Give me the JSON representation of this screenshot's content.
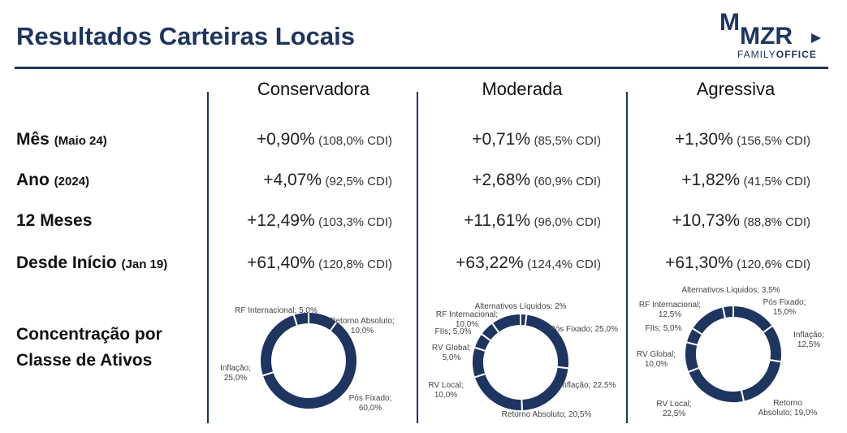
{
  "header": {
    "title": "Resultados Carteiras Locais",
    "logo": {
      "mark": "M",
      "name": "MZR",
      "family": "FAMILY",
      "office": "OFFICE"
    }
  },
  "table": {
    "columns": [
      "Conservadora",
      "Moderada",
      "Agressiva"
    ],
    "rows": [
      {
        "label": "Mês",
        "sub": "(Maio 24)",
        "cells": [
          [
            "+0,90%",
            "(108,0% CDI)"
          ],
          [
            "+0,71%",
            "(85,5% CDI)"
          ],
          [
            "+1,30%",
            "(156,5% CDI)"
          ]
        ]
      },
      {
        "label": "Ano",
        "sub": "(2024)",
        "cells": [
          [
            "+4,07%",
            "(92,5% CDI)"
          ],
          [
            "+2,68%",
            "(60,9% CDI)"
          ],
          [
            "+1,82%",
            "(41,5% CDI)"
          ]
        ]
      },
      {
        "label": "12 Meses",
        "sub": null,
        "cells": [
          [
            "+12,49%",
            "(103,3% CDI)"
          ],
          [
            "+11,61%",
            "(96,0% CDI)"
          ],
          [
            "+10,73%",
            "(88,8% CDI)"
          ]
        ]
      },
      {
        "label": "Desde Início",
        "sub": "(Jan 19)",
        "cells": [
          [
            "+61,40%",
            "(120,8% CDI)"
          ],
          [
            "+63,22%",
            "(124,4% CDI)"
          ],
          [
            "+61,30%",
            "(120,6% CDI)"
          ]
        ]
      }
    ],
    "concentration_label": "Concentração por\nClasse de Ativos"
  },
  "charts": [
    {
      "type": "donut",
      "color": "#1e3560",
      "slices": [
        {
          "label": "Retorno Absoluto;\n10,0%",
          "value": 10
        },
        {
          "label": "Pós Fixado;\n60,0%",
          "value": 60
        },
        {
          "label": "Inflação;\n25,0%",
          "value": 25
        },
        {
          "label": "RF Internacional; 5,0%",
          "value": 5
        }
      ]
    },
    {
      "type": "donut",
      "color": "#1e3560",
      "slices": [
        {
          "label": "Alternativos Líquidos; 2%",
          "value": 2
        },
        {
          "label": "Pós Fixado; 25,0%",
          "value": 25
        },
        {
          "label": "Inflação; 22,5%",
          "value": 22.5
        },
        {
          "label": "Retorno Absoluto; 20,5%",
          "value": 20.5
        },
        {
          "label": "RV Local;\n10,0%",
          "value": 10
        },
        {
          "label": "RV Global;\n5,0%",
          "value": 5
        },
        {
          "label": "FIIs; 5,0%",
          "value": 5
        },
        {
          "label": "RF Internacional;\n10,0%",
          "value": 10
        }
      ]
    },
    {
      "type": "donut",
      "color": "#1e3560",
      "slices": [
        {
          "label": "Pós Fixado; 15,0%",
          "value": 15
        },
        {
          "label": "Inflação; 12,5%",
          "value": 12.5
        },
        {
          "label": "Retorno Absoluto; 19,0%",
          "value": 19
        },
        {
          "label": "RV Local;\n22,5%",
          "value": 22.5
        },
        {
          "label": "RV Global;\n10,0%",
          "value": 10
        },
        {
          "label": "FIIs; 5,0%",
          "value": 5
        },
        {
          "label": "RF Internacional;\n12,5%",
          "value": 12.5
        },
        {
          "label": "Alternativos Líquidos; 3,5%",
          "value": 3.5
        }
      ]
    }
  ]
}
